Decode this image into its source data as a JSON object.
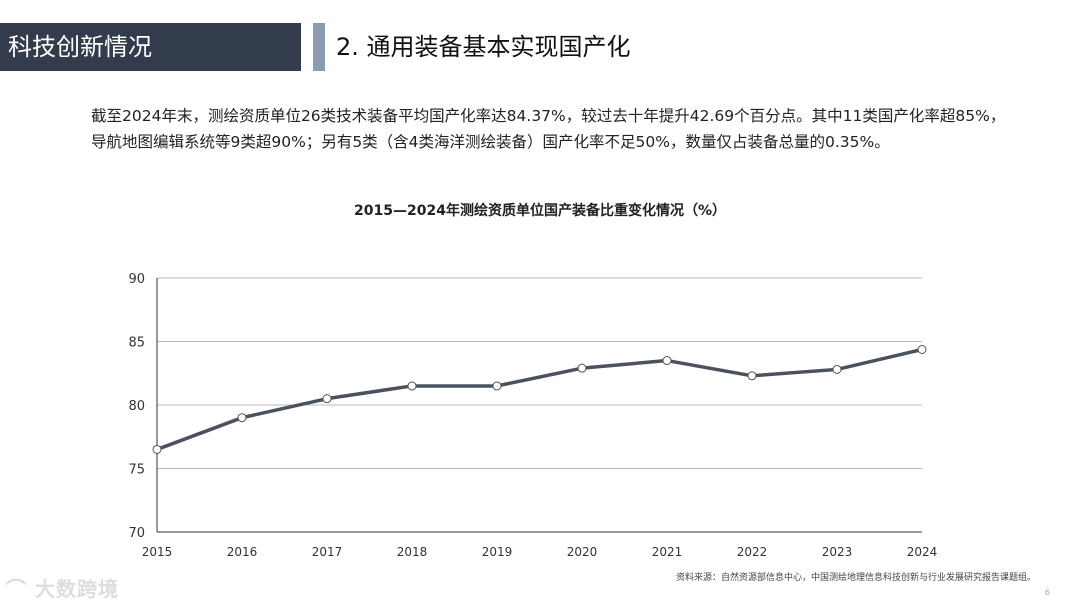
{
  "header": {
    "section": "科技创新情况",
    "title": "2. 通用装备基本实现国产化"
  },
  "body": {
    "paragraph": "截至2024年末，测绘资质单位26类技术装备平均国产化率达84.37%，较过去十年提升42.69个百分点。其中11类国产化率超85%，导航地图编辑系统等9类超90%；另有5类（含4类海洋测绘装备）国产化率不足50%，数量仅占装备总量的0.35%。"
  },
  "chart_data": {
    "type": "line",
    "title": "2015—2024年测绘资质单位国产装备比重变化情况（%）",
    "categories": [
      "2015",
      "2016",
      "2017",
      "2018",
      "2019",
      "2020",
      "2021",
      "2022",
      "2023",
      "2024"
    ],
    "values": [
      76.5,
      79.0,
      80.5,
      81.5,
      81.5,
      82.9,
      83.5,
      82.3,
      82.8,
      84.37
    ],
    "ylim": [
      70,
      90
    ],
    "yticks": [
      "70",
      "75",
      "80",
      "85",
      "90"
    ],
    "grid": true,
    "line_color": "#4a525e"
  },
  "footer": {
    "source": "资料来源：自然资源部信息中心，中国测绘地理信息科技创新与行业发展研究报告课题组。",
    "page": "6",
    "watermark": "大数跨境"
  }
}
